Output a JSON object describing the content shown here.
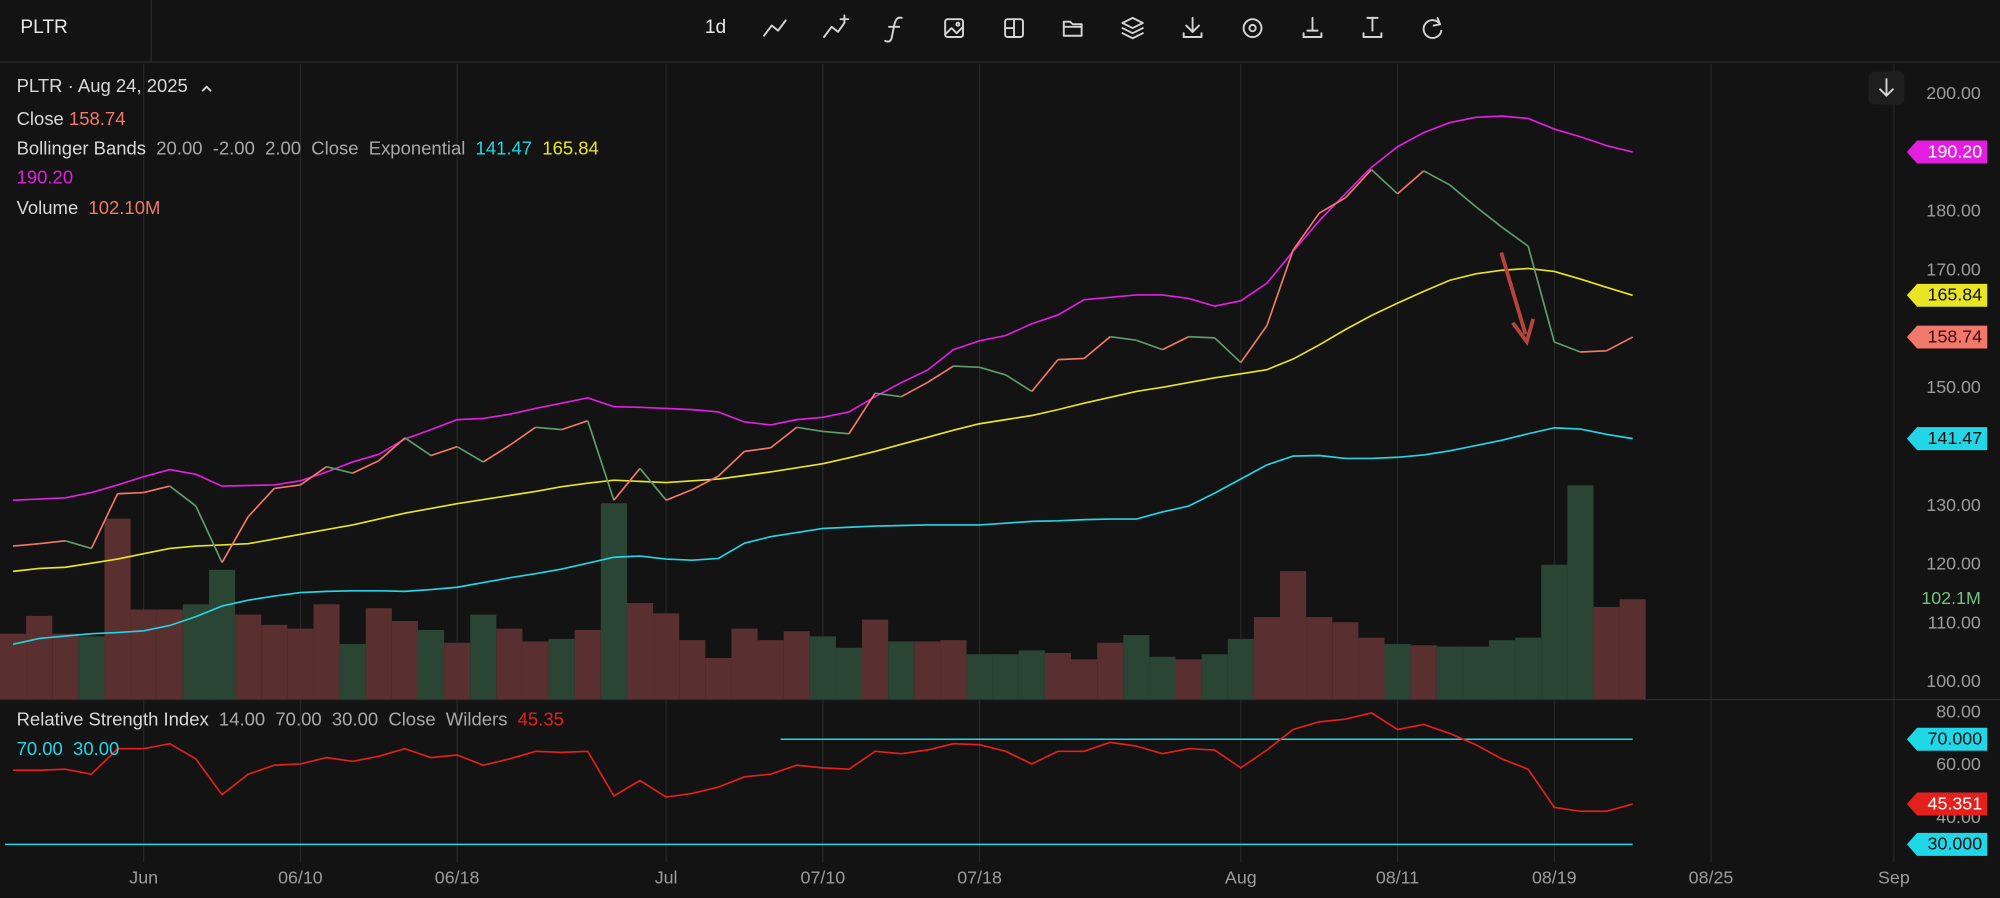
{
  "toolbar": {
    "symbol": "PLTR",
    "interval": "1d"
  },
  "legend": {
    "header": "PLTR · Aug 24, 2025",
    "close_label": "Close",
    "close_value": "158.74",
    "bb_label": "Bollinger Bands",
    "bb_params": [
      "20.00",
      "-2.00",
      "2.00",
      "Close",
      "Exponential"
    ],
    "bb_lower": "141.47",
    "bb_middle": "165.84",
    "bb_upper": "190.20",
    "volume_label": "Volume",
    "volume_value": "102.10M",
    "rsi_label": "Relative Strength Index",
    "rsi_params": [
      "14.00",
      "70.00",
      "30.00",
      "Close",
      "Wilders"
    ],
    "rsi_value": "45.35",
    "rsi_levels": [
      "70.00",
      "30.00"
    ]
  },
  "chart_data": [
    {
      "type": "line",
      "categories": [
        null,
        null,
        null,
        null,
        null,
        "Jun",
        null,
        null,
        null,
        null,
        null,
        "06/10",
        null,
        null,
        null,
        null,
        null,
        "06/18",
        null,
        null,
        null,
        null,
        null,
        null,
        null,
        "Jul",
        null,
        null,
        null,
        null,
        null,
        "07/10",
        null,
        null,
        null,
        null,
        null,
        "07/18",
        null,
        null,
        null,
        null,
        null,
        null,
        null,
        null,
        null,
        "Aug",
        null,
        null,
        null,
        null,
        null,
        "08/11",
        null,
        null,
        null,
        null,
        null,
        "08/19",
        null,
        null,
        null,
        null,
        null,
        "08/25",
        null,
        null,
        null,
        null,
        null,
        null,
        "Sep"
      ],
      "ylim": [
        97.2,
        205.2
      ],
      "yticks": [
        {
          "value": 200,
          "label": "200.00"
        },
        {
          "value": 180,
          "label": "180.00"
        },
        {
          "value": 170,
          "label": "170.00"
        },
        {
          "value": 150,
          "label": "150.00"
        },
        {
          "value": 130,
          "label": "130.00"
        },
        {
          "value": 120,
          "label": "120.00"
        },
        {
          "value": 110,
          "label": "110.00"
        },
        {
          "value": 100,
          "label": "100.00"
        }
      ],
      "y2lim": [
        0,
        650
      ],
      "series": [
        {
          "name": "Volume",
          "type": "bar",
          "axis": "y2",
          "last_label": "102.1M",
          "label_color": "#74c17f",
          "values": [
            66.8,
            85.1,
            66.8,
            64.1,
            184.6,
            91.6,
            91.6,
            96.9,
            132.2,
            86.4,
            75.9,
            72.0,
            96.9,
            56.3,
            92.9,
            79.8,
            70.7,
            57.6,
            86.4,
            72.0,
            58.9,
            61.5,
            70.7,
            200.3,
            98.2,
            87.7,
            60.2,
            41.9,
            72.0,
            60.2,
            69.4,
            64.1,
            52.4,
            81.2,
            58.9,
            58.9,
            60.2,
            45.8,
            45.8,
            49.7,
            47.1,
            40.6,
            57.6,
            65.5,
            43.2,
            40.6,
            45.8,
            61.5,
            83.8,
            130.9,
            83.8,
            78.5,
            62.8,
            56.3,
            55.0,
            53.7,
            53.7,
            60.2,
            62.8,
            137.4,
            218.6,
            94.2,
            102.1,
            null,
            null,
            null,
            null,
            null,
            null,
            null,
            null,
            null,
            null
          ],
          "colors": [
            "#5a2f2f",
            "#5a2f2f",
            "#5a2f2f",
            "#2b4535",
            "#5a2f2f",
            "#5a2f2f",
            "#5a2f2f",
            "#2b4535",
            "#2b4535",
            "#5a2f2f",
            "#5a2f2f",
            "#5a2f2f",
            "#5a2f2f",
            "#2b4535",
            "#5a2f2f",
            "#5a2f2f",
            "#2b4535",
            "#5a2f2f",
            "#2b4535",
            "#5a2f2f",
            "#5a2f2f",
            "#2b4535",
            "#5a2f2f",
            "#2b4535",
            "#5a2f2f",
            "#5a2f2f",
            "#5a2f2f",
            "#5a2f2f",
            "#5a2f2f",
            "#5a2f2f",
            "#5a2f2f",
            "#2b4535",
            "#2b4535",
            "#5a2f2f",
            "#2b4535",
            "#5a2f2f",
            "#5a2f2f",
            "#2b4535",
            "#2b4535",
            "#2b4535",
            "#5a2f2f",
            "#5a2f2f",
            "#5a2f2f",
            "#2b4535",
            "#2b4535",
            "#5a2f2f",
            "#2b4535",
            "#2b4535",
            "#5a2f2f",
            "#5a2f2f",
            "#5a2f2f",
            "#5a2f2f",
            "#5a2f2f",
            "#2b4535",
            "#5a2f2f",
            "#2b4535",
            "#2b4535",
            "#2b4535",
            "#2b4535",
            "#2b4535",
            "#2b4535",
            "#5a2f2f",
            "#5a2f2f",
            null,
            null,
            null,
            null,
            null,
            null,
            null,
            null,
            null,
            null
          ]
        },
        {
          "name": "Bollinger Upper",
          "type": "line",
          "color": "#e21fe0",
          "last_label": "190.20",
          "label_color": "#ffffff",
          "values": [
            131,
            131.2,
            131.4,
            132.3,
            133.6,
            135,
            136.2,
            135.4,
            133.4,
            133.5,
            133.6,
            134.3,
            135.8,
            137.5,
            138.8,
            141.4,
            143,
            144.7,
            144.9,
            145.6,
            146.6,
            147.5,
            148.4,
            146.9,
            146.8,
            146.6,
            146.4,
            146,
            144.3,
            143.8,
            144.7,
            145.1,
            146,
            148.6,
            151,
            153.1,
            156.6,
            158.1,
            159,
            161,
            162.5,
            165.1,
            165.5,
            165.9,
            165.9,
            165.3,
            164,
            164.9,
            167.9,
            173.3,
            178.5,
            183.1,
            187.6,
            191.1,
            193.5,
            195.2,
            196.1,
            196.3,
            195.9,
            194.1,
            192.8,
            191.3,
            190.2,
            null,
            null,
            null,
            null,
            null,
            null,
            null,
            null,
            null,
            null
          ]
        },
        {
          "name": "Bollinger Middle",
          "type": "line",
          "color": "#e9e524",
          "last_label": "165.84",
          "label_color": "#111111",
          "values": [
            118.9,
            119.4,
            119.6,
            120.3,
            121,
            121.9,
            122.8,
            123.2,
            123.4,
            123.6,
            124.4,
            125.2,
            126,
            126.8,
            127.8,
            128.8,
            129.6,
            130.4,
            131.1,
            131.8,
            132.5,
            133.3,
            133.9,
            134.4,
            134.2,
            134,
            134.3,
            134.6,
            135.2,
            135.8,
            136.5,
            137.2,
            138.2,
            139.3,
            140.5,
            141.7,
            142.9,
            144,
            144.7,
            145.4,
            146.4,
            147.5,
            148.5,
            149.5,
            150.2,
            151,
            151.8,
            152.5,
            153.2,
            155,
            157.4,
            160,
            162.4,
            164.5,
            166.5,
            168.4,
            169.5,
            170.1,
            170.4,
            169.9,
            168.6,
            167.2,
            165.84,
            null,
            null,
            null,
            null,
            null,
            null,
            null,
            null,
            null,
            null
          ]
        },
        {
          "name": "Bollinger Lower",
          "type": "line",
          "color": "#22d6e6",
          "last_label": "141.47",
          "label_color": "#111111",
          "values": [
            106.5,
            107.5,
            107.9,
            108.3,
            108.5,
            108.8,
            109.7,
            111.2,
            113,
            114,
            114.7,
            115.3,
            115.5,
            115.6,
            115.6,
            115.5,
            115.8,
            116.2,
            117,
            117.8,
            118.5,
            119.3,
            120.3,
            121.3,
            121.5,
            121,
            120.8,
            121.1,
            123.7,
            124.8,
            125.5,
            126.2,
            126.4,
            126.6,
            126.7,
            126.8,
            126.8,
            126.8,
            127.1,
            127.4,
            127.5,
            127.7,
            127.8,
            127.8,
            129,
            130,
            132.2,
            134.6,
            137,
            138.5,
            138.6,
            138.1,
            138.1,
            138.3,
            138.7,
            139.4,
            140.3,
            141.2,
            142.3,
            143.3,
            143.1,
            142.2,
            141.47,
            null,
            null,
            null,
            null,
            null,
            null,
            null,
            null,
            null,
            null
          ]
        },
        {
          "name": "Close",
          "type": "line",
          "color": "#f2786b",
          "down_color": "#5f9e6b",
          "last_label": "158.74",
          "label_color": "#3a0d0d",
          "values": [
            123.2,
            123.6,
            124.1,
            122.8,
            132.1,
            132.3,
            133.4,
            130.0,
            120.4,
            128.2,
            133.0,
            133.6,
            136.7,
            135.6,
            137.7,
            141.6,
            138.6,
            140.1,
            137.5,
            140.3,
            143.4,
            143.0,
            144.5,
            131.0,
            136.4,
            131.0,
            132.8,
            135.1,
            139.3,
            139.9,
            143.4,
            142.7,
            142.3,
            149.2,
            148.6,
            151.0,
            153.8,
            153.6,
            152.3,
            149.5,
            154.9,
            155.1,
            158.8,
            158.2,
            156.6,
            158.8,
            158.6,
            154.4,
            160.7,
            173.5,
            179.8,
            182.4,
            187.2,
            183.1,
            187.0,
            184.6,
            180.9,
            177.4,
            174.2,
            157.9,
            156.2,
            156.4,
            158.74,
            null,
            null,
            null,
            null,
            null,
            null,
            null,
            null,
            null,
            null
          ]
        }
      ]
    },
    {
      "type": "line",
      "name": "Relative Strength Index",
      "color": "#e3201c",
      "last_label": "45.351",
      "label_color": "#ffffff",
      "ylim": [
        23.2,
        85.3
      ],
      "yticks": [
        {
          "value": 80,
          "label": "80.00"
        },
        {
          "value": 60,
          "label": "60.00"
        },
        {
          "value": 40,
          "label": "40.00"
        }
      ],
      "levels": [
        {
          "value": 70,
          "label": "70.000"
        },
        {
          "value": 30,
          "label": "30.000"
        }
      ],
      "level_color": "#1fd7e6",
      "values": [
        58.2,
        58.2,
        58.6,
        56.7,
        66.4,
        66.4,
        68.3,
        62.5,
        48.9,
        56.7,
        60.1,
        60.6,
        63,
        61.6,
        63.5,
        66.4,
        63,
        64,
        60.1,
        62.5,
        65.4,
        65,
        65.4,
        48.4,
        54.3,
        48,
        49.4,
        51.8,
        55.7,
        56.7,
        60.1,
        59.1,
        58.6,
        65.4,
        64.5,
        65.9,
        68.3,
        67.9,
        65.4,
        60.6,
        65.4,
        65.4,
        68.8,
        67.4,
        64.5,
        66.4,
        65.9,
        59.1,
        65.9,
        73.7,
        76.6,
        77.6,
        80,
        73.7,
        75.6,
        72.2,
        67.9,
        62.5,
        58.6,
        44.1,
        42.6,
        42.6,
        45.35,
        null,
        null,
        null,
        null,
        null,
        null,
        null,
        null,
        null,
        null
      ]
    }
  ]
}
